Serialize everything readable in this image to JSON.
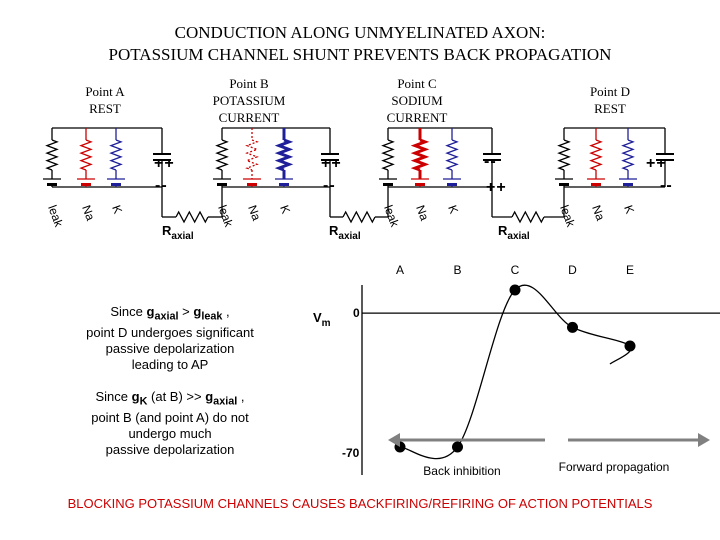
{
  "title": {
    "line1": "CONDUCTION ALONG  UNMYELINATED AXON:",
    "line2": "POTASSIUM CHANNEL SHUNT PREVENTS BACK PROPAGATION"
  },
  "points": [
    {
      "name": "Point A",
      "state": "REST"
    },
    {
      "name": "Point B",
      "state": "POTASSIUM",
      "state2": "CURRENT"
    },
    {
      "name": "Point C",
      "state": "SODIUM",
      "state2": "CURRENT"
    },
    {
      "name": "Point D",
      "state": "REST"
    }
  ],
  "circuit": {
    "channel_labels": [
      "leak",
      "Na",
      "K"
    ],
    "resistor_label": "R",
    "resistor_sub": "axial",
    "charge_plus": "++",
    "charge_minus": "--",
    "colors": {
      "leak": "#000000",
      "na": "#cc0000",
      "k": "#1f1f99"
    }
  },
  "notes": {
    "note1_a": "Since ",
    "note1_gaxial": "g",
    "note1_gaxial_sub": "axial",
    "note1_gt": " > ",
    "note1_gleak": "g",
    "note1_gleak_sub": "leak",
    "note1_comma": " ,",
    "note1_line2": "point D undergoes significant",
    "note1_line3": "passive depolarization",
    "note1_line4": "leading to AP",
    "note2_a": "Since ",
    "note2_gk": "g",
    "note2_gk_sub": "K",
    "note2_mid": " (at B) >> ",
    "note2_gaxial": "g",
    "note2_gaxial_sub": "axial",
    "note2_comma": " ,",
    "note2_line2": "point B (and point A) do not",
    "note2_line3": "undergo much",
    "note2_line4": "passive depolarization"
  },
  "chart_data": {
    "type": "scatter",
    "categories": [
      "A",
      "B",
      "C",
      "D",
      "E"
    ],
    "values": [
      -70,
      -70,
      14,
      -6,
      -16
    ],
    "ylabel": "V",
    "ylabel_sub": "m",
    "ytick_labels": [
      "0",
      "-70"
    ],
    "ytick_values": [
      0,
      -70
    ],
    "ylim": [
      -85,
      22
    ],
    "grid": false
  },
  "arrows": {
    "back": "Back inhibition",
    "forward": "Forward propagation",
    "color": "#808080"
  },
  "bottom_note": "BLOCKING POTASSIUM CHANNELS CAUSES BACKFIRING/REFIRING OF ACTION POTENTIALS"
}
